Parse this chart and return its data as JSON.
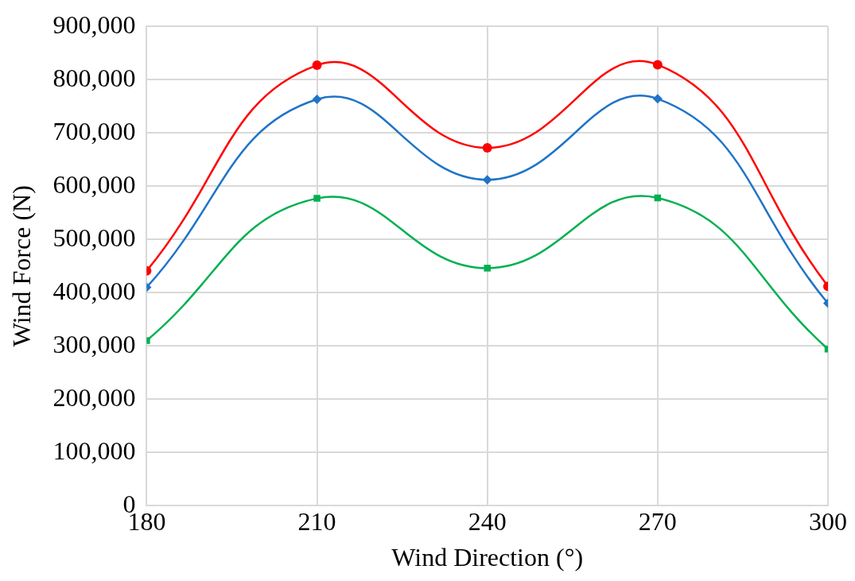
{
  "chart_data": {
    "type": "line",
    "xlabel": "Wind Direction (°)",
    "ylabel": "Wind Force (N)",
    "x": [
      180,
      210,
      240,
      270,
      300
    ],
    "xlim": [
      180,
      300
    ],
    "xticks": [
      180,
      210,
      240,
      270,
      300
    ],
    "ylim": [
      0,
      900000
    ],
    "yticks": [
      {
        "value": 0,
        "label": "0"
      },
      {
        "value": 100000,
        "label": "100,000"
      },
      {
        "value": 200000,
        "label": "200,000"
      },
      {
        "value": 300000,
        "label": "300,000"
      },
      {
        "value": 400000,
        "label": "400,000"
      },
      {
        "value": 500000,
        "label": "500,000"
      },
      {
        "value": 600000,
        "label": "600,000"
      },
      {
        "value": 700000,
        "label": "700,000"
      },
      {
        "value": 800000,
        "label": "800,000"
      },
      {
        "value": 900000,
        "label": "900,000"
      }
    ],
    "grid": true,
    "legend": false,
    "series": [
      {
        "color": "#ff0000",
        "marker": "circle",
        "values": [
          441000,
          827000,
          672000,
          828000,
          412000
        ]
      },
      {
        "color": "#1f74c8",
        "marker": "diamond",
        "values": [
          410000,
          763000,
          612000,
          764000,
          380000
        ]
      },
      {
        "color": "#00b050",
        "marker": "square",
        "values": [
          310000,
          577000,
          446000,
          578000,
          294000
        ]
      }
    ]
  }
}
